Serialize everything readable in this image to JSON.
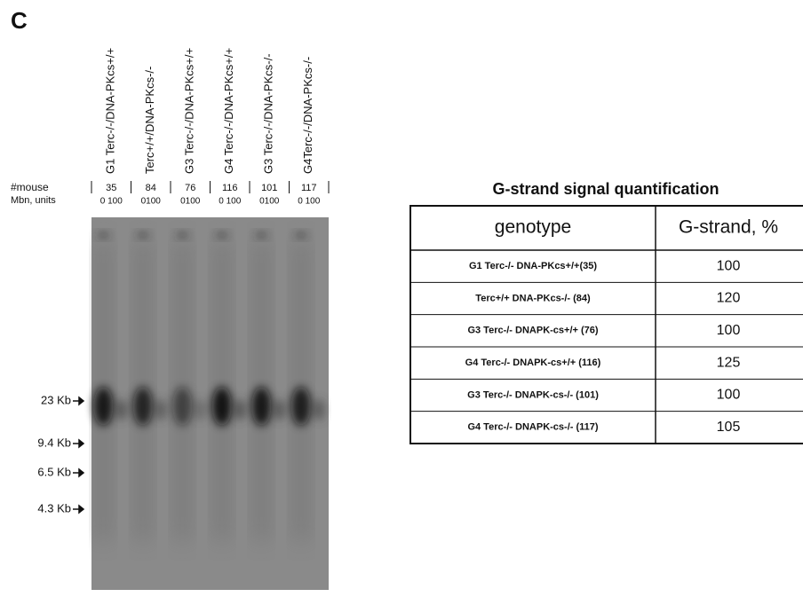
{
  "panel_label": "C",
  "lanes": [
    {
      "genotype": "G1 Terc-/-/DNA-PKcs+/+",
      "mouse": "35",
      "mbn": "0 100"
    },
    {
      "genotype": "Terc+/+/DNA-PKcs-/-",
      "mouse": "84",
      "mbn": "0100"
    },
    {
      "genotype": "G3 Terc-/-/DNA-PKcs+/+",
      "mouse": "76",
      "mbn": "0100"
    },
    {
      "genotype": "G4 Terc-/-/DNA-PKcs+/+",
      "mouse": "116",
      "mbn": "0 100"
    },
    {
      "genotype": "G3 Terc-/-/DNA-PKcs-/-",
      "mouse": "101",
      "mbn": "0100"
    },
    {
      "genotype": "G4Terc-/-/DNA-PKcs-/-",
      "mouse": "117",
      "mbn": "0 100"
    }
  ],
  "row_labels": {
    "mouse": "#mouse",
    "mbn": "Mbn, units"
  },
  "markers": [
    "23 Kb",
    "9.4 Kb",
    "6.5 Kb",
    "4.3 Kb"
  ],
  "table": {
    "title": "G-strand signal quantification",
    "header": [
      "genotype",
      "G-strand, %"
    ],
    "rows": [
      [
        "G1 Terc-/- DNA-PKcs+/+(35)",
        "100"
      ],
      [
        "Terc+/+ DNA-PKcs-/- (84)",
        "120"
      ],
      [
        "G3 Terc-/- DNAPK-cs+/+ (76)",
        "100"
      ],
      [
        "G4 Terc-/- DNAPK-cs+/+ (116)",
        "125"
      ],
      [
        "G3 Terc-/- DNAPK-cs-/- (101)",
        "100"
      ],
      [
        "G4 Terc-/- DNAPK-cs-/- (117)",
        "105"
      ]
    ]
  }
}
